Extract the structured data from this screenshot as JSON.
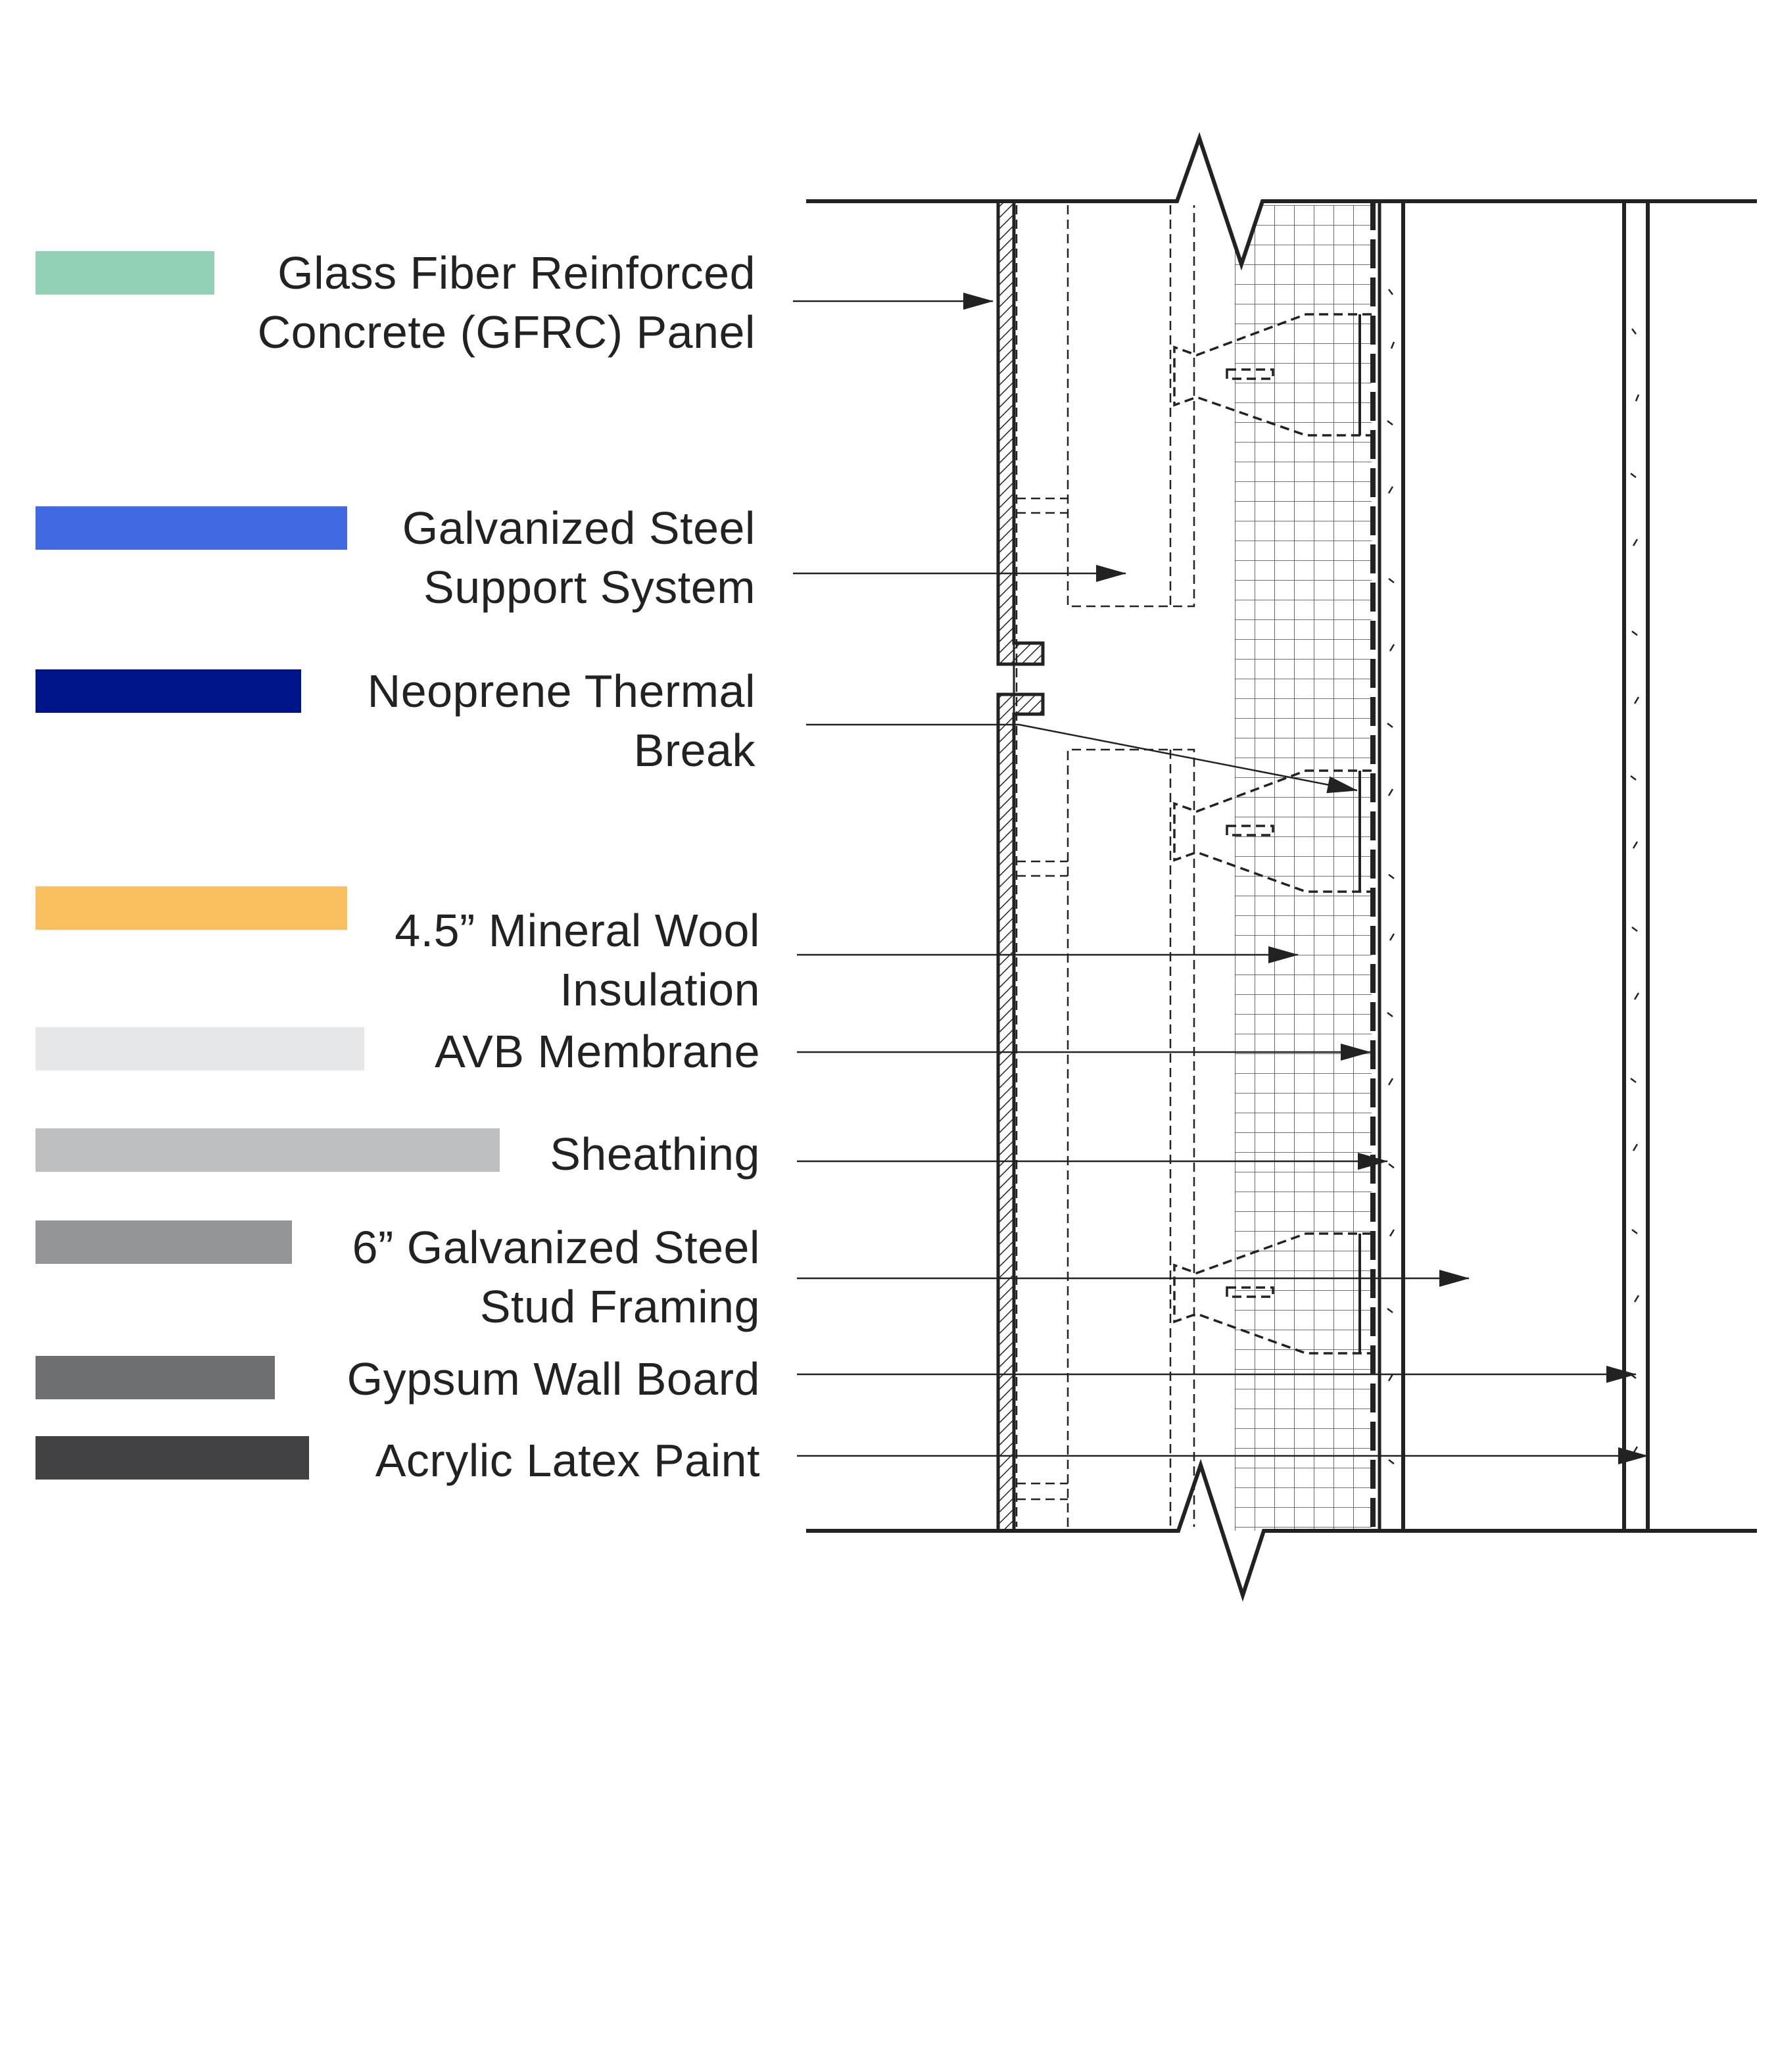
{
  "legend": [
    {
      "lines": [
        "Glass Fiber Reinforced",
        "Concrete (GFRC) Panel"
      ],
      "color": "#92D1B6"
    },
    {
      "lines": [
        "Galvanized Steel",
        "Support System"
      ],
      "color": "#4169E1"
    },
    {
      "lines": [
        "Neoprene Thermal",
        "Break"
      ],
      "color": "#001489"
    },
    {
      "lines": [
        "4.5” Mineral Wool",
        "Insulation"
      ],
      "color": "#FAC060"
    },
    {
      "lines": [
        "AVB Membrane"
      ],
      "color": "#E6E7E8"
    },
    {
      "lines": [
        "Sheathing"
      ],
      "color": "#BCBEC0"
    },
    {
      "lines": [
        "6” Galvanized Steel",
        "Stud Framing"
      ],
      "color": "#939598"
    },
    {
      "lines": [
        "Gypsum Wall Board"
      ],
      "color": "#6D6E71"
    },
    {
      "lines": [
        "Acrylic Latex Paint"
      ],
      "color": "#414042"
    }
  ]
}
